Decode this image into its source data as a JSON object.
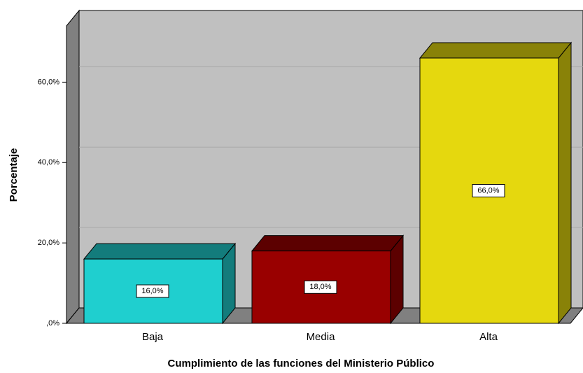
{
  "chart_data": {
    "type": "bar3d",
    "x_label": "Cumplimiento de las funciones del Ministerio Público",
    "y_label": "Porcentaje",
    "categories": [
      "Baja",
      "Media",
      "Alta"
    ],
    "values": [
      16,
      18,
      66
    ],
    "value_labels": [
      "16,0%",
      "18,0%",
      "66,0%"
    ],
    "colors": [
      "#1fcfcf",
      "#990000",
      "#e5d80e"
    ],
    "ylim": [
      0,
      74
    ],
    "yticks": [
      {
        "value": 0,
        "label": ",0%"
      },
      {
        "value": 20,
        "label": "20,0%"
      },
      {
        "value": 40,
        "label": "40,0%"
      },
      {
        "value": 60,
        "label": "60,0%"
      }
    ],
    "grid": true
  }
}
